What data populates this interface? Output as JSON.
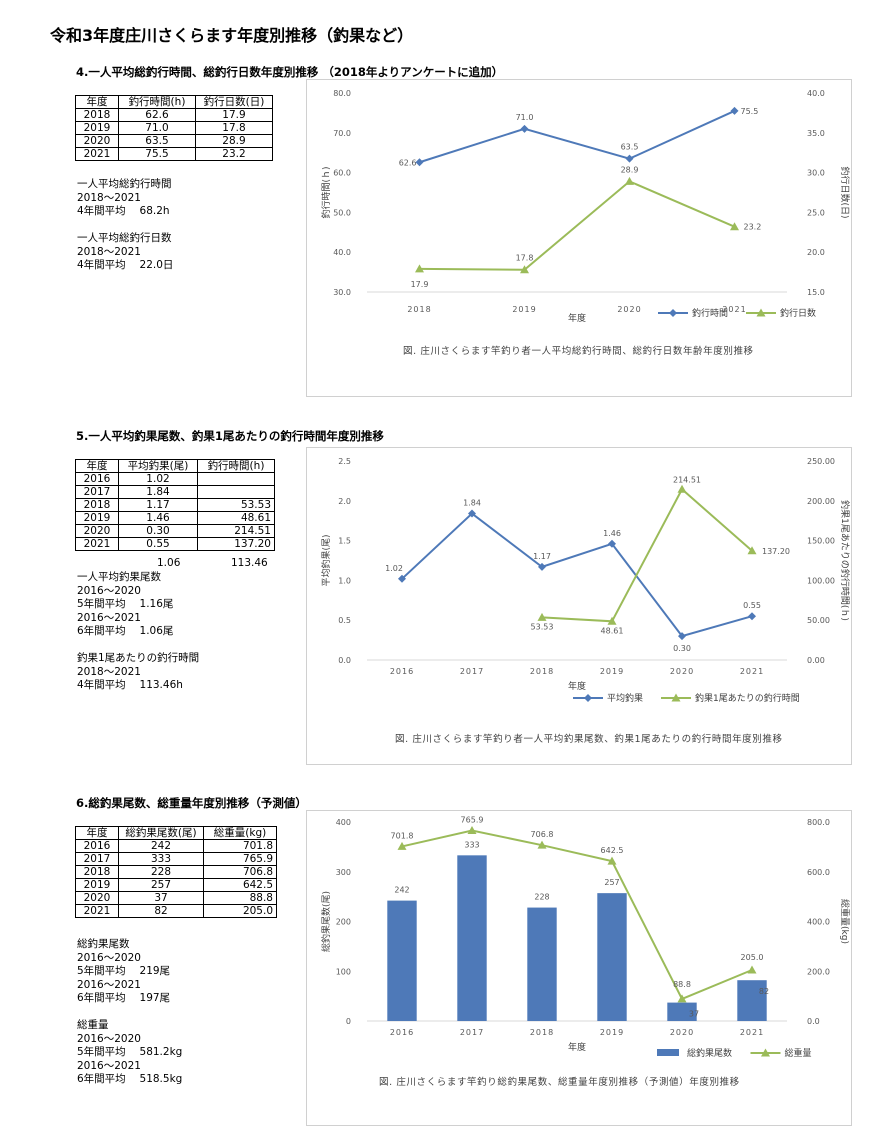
{
  "page_title": "令和3年度庄川さくらます年度別推移（釣果など）",
  "section4": {
    "heading": "4.一人平均総釣行時間、総釣行日数年度別推移 （2018年よりアンケートに追加）",
    "table": {
      "headers": [
        "年度",
        "釣行時間(h)",
        "釣行日数(日)"
      ],
      "rows": [
        [
          "2018",
          "62.6",
          "17.9"
        ],
        [
          "2019",
          "71.0",
          "17.8"
        ],
        [
          "2020",
          "63.5",
          "28.9"
        ],
        [
          "2021",
          "75.5",
          "23.2"
        ]
      ]
    },
    "notes": [
      "一人平均総釣行時間",
      "2018～2021",
      "4年間平均　 68.2h",
      "",
      "一人平均総釣行日数",
      "2018～2021",
      "4年間平均　 22.0日"
    ]
  },
  "section5": {
    "heading": "5.一人平均釣果尾数、釣果1尾あたりの釣行時間年度別推移",
    "table": {
      "headers": [
        "年度",
        "平均釣果(尾)",
        "釣行時間(h)"
      ],
      "rows": [
        [
          "2016",
          "1.02",
          ""
        ],
        [
          "2017",
          "1.84",
          ""
        ],
        [
          "2018",
          "1.17",
          "53.53"
        ],
        [
          "2019",
          "1.46",
          "48.61"
        ],
        [
          "2020",
          "0.30",
          "214.51"
        ],
        [
          "2021",
          "0.55",
          "137.20"
        ]
      ]
    },
    "below_table": [
      "1.06",
      "113.46"
    ],
    "notes": [
      "一人平均釣果尾数",
      "2016～2020",
      "5年間平均　 1.16尾",
      "2016～2021",
      "6年間平均　 1.06尾",
      "",
      "釣果1尾あたりの釣行時間",
      "2018～2021",
      "4年間平均　 113.46h"
    ]
  },
  "section6": {
    "heading": "6.総釣果尾数、総重量年度別推移（予測値）",
    "table": {
      "headers": [
        "年度",
        "総釣果尾数(尾)",
        "総重量(kg)"
      ],
      "rows": [
        [
          "2016",
          "242",
          "701.8"
        ],
        [
          "2017",
          "333",
          "765.9"
        ],
        [
          "2018",
          "228",
          "706.8"
        ],
        [
          "2019",
          "257",
          "642.5"
        ],
        [
          "2020",
          "37",
          "88.8"
        ],
        [
          "2021",
          "82",
          "205.0"
        ]
      ]
    },
    "notes": [
      "総釣果尾数",
      "2016～2020",
      "5年間平均　 219尾",
      "2016～2021",
      "6年間平均　 197尾",
      "",
      "総重量",
      "2016～2020",
      "5年間平均　 581.2kg",
      "2016～2021",
      "6年間平均　 518.5kg"
    ]
  },
  "chart_data": [
    {
      "type": "line",
      "categories": [
        "2018",
        "2019",
        "2020",
        "2021"
      ],
      "series": [
        {
          "name": "釣行時間",
          "axis": "left",
          "values": [
            62.6,
            71.0,
            63.5,
            75.5
          ],
          "labels": [
            "62.6",
            "71.0",
            "63.5",
            "75.5"
          ],
          "color": "#4e79b8",
          "marker": "diamond"
        },
        {
          "name": "釣行日数",
          "axis": "right",
          "values": [
            17.9,
            17.8,
            28.9,
            23.2
          ],
          "labels": [
            "17.9",
            "17.8",
            "28.9",
            "23.2"
          ],
          "color": "#9bbb59",
          "marker": "triangle"
        }
      ],
      "xlabel": "年度",
      "ylabel_left": "釣行時間(ｈ)",
      "ylabel_right": "釣行日数(日)",
      "ylim_left": [
        30,
        80
      ],
      "ylim_right": [
        15,
        40
      ],
      "yticks_left": [
        "30.0",
        "40.0",
        "50.0",
        "60.0",
        "70.0",
        "80.0"
      ],
      "yticks_right": [
        "15.0",
        "20.0",
        "25.0",
        "30.0",
        "35.0",
        "40.0"
      ],
      "legend": "bottom-right",
      "caption": "図. 庄川さくらます竿釣り者一人平均総釣行時間、総釣行日数年齢年度別推移"
    },
    {
      "type": "line",
      "categories": [
        "2016",
        "2017",
        "2018",
        "2019",
        "2020",
        "2021"
      ],
      "series": [
        {
          "name": "平均釣果",
          "axis": "left",
          "values": [
            1.02,
            1.84,
            1.17,
            1.46,
            0.3,
            0.55
          ],
          "labels": [
            "1.02",
            "1.84",
            "1.17",
            "1.46",
            "0.30",
            "0.55"
          ],
          "color": "#4e79b8",
          "marker": "diamond"
        },
        {
          "name": "釣果1尾あたりの釣行時間",
          "axis": "right",
          "values": [
            null,
            null,
            53.53,
            48.61,
            214.51,
            137.2
          ],
          "labels": [
            "",
            "",
            "53.53",
            "48.61",
            "214.51",
            "137.20"
          ],
          "color": "#9bbb59",
          "marker": "triangle"
        }
      ],
      "xlabel": "年度",
      "ylabel_left": "平均釣果(尾)",
      "ylabel_right": "釣果1尾あたりの釣行時間(ｈ)",
      "ylim_left": [
        0,
        2.5
      ],
      "ylim_right": [
        0,
        250
      ],
      "yticks_left": [
        "0.0",
        "0.5",
        "1.0",
        "1.5",
        "2.0",
        "2.5"
      ],
      "yticks_right": [
        "0.00",
        "50.00",
        "100.00",
        "150.00",
        "200.00",
        "250.00"
      ],
      "legend": "bottom",
      "caption": "図. 庄川さくらます竿釣り者一人平均釣果尾数、釣果1尾あたりの釣行時間年度別推移"
    },
    {
      "type": "bar",
      "categories": [
        "2016",
        "2017",
        "2018",
        "2019",
        "2020",
        "2021"
      ],
      "series": [
        {
          "name": "総釣果尾数",
          "kind": "bar",
          "axis": "left",
          "values": [
            242,
            333,
            228,
            257,
            37,
            82
          ],
          "labels": [
            "242",
            "333",
            "228",
            "257",
            "37",
            "82"
          ],
          "color": "#4e79b8"
        },
        {
          "name": "総重量",
          "kind": "line",
          "axis": "right",
          "values": [
            701.8,
            765.9,
            706.8,
            642.5,
            88.8,
            205.0
          ],
          "labels": [
            "701.8",
            "765.9",
            "706.8",
            "642.5",
            "88.8",
            "205.0"
          ],
          "color": "#9bbb59",
          "marker": "triangle"
        }
      ],
      "xlabel": "年度",
      "ylabel_left": "総釣果尾数(尾)",
      "ylabel_right": "総重量(kg)",
      "ylim_left": [
        0,
        400
      ],
      "ylim_right": [
        0,
        800
      ],
      "yticks_left": [
        "0",
        "100",
        "200",
        "300",
        "400"
      ],
      "yticks_right": [
        "0.0",
        "200.0",
        "400.0",
        "600.0",
        "800.0"
      ],
      "legend": "bottom",
      "caption": "図. 庄川さくらます竿釣り総釣果尾数、総重量年度別推移（予測値）年度別推移"
    }
  ]
}
